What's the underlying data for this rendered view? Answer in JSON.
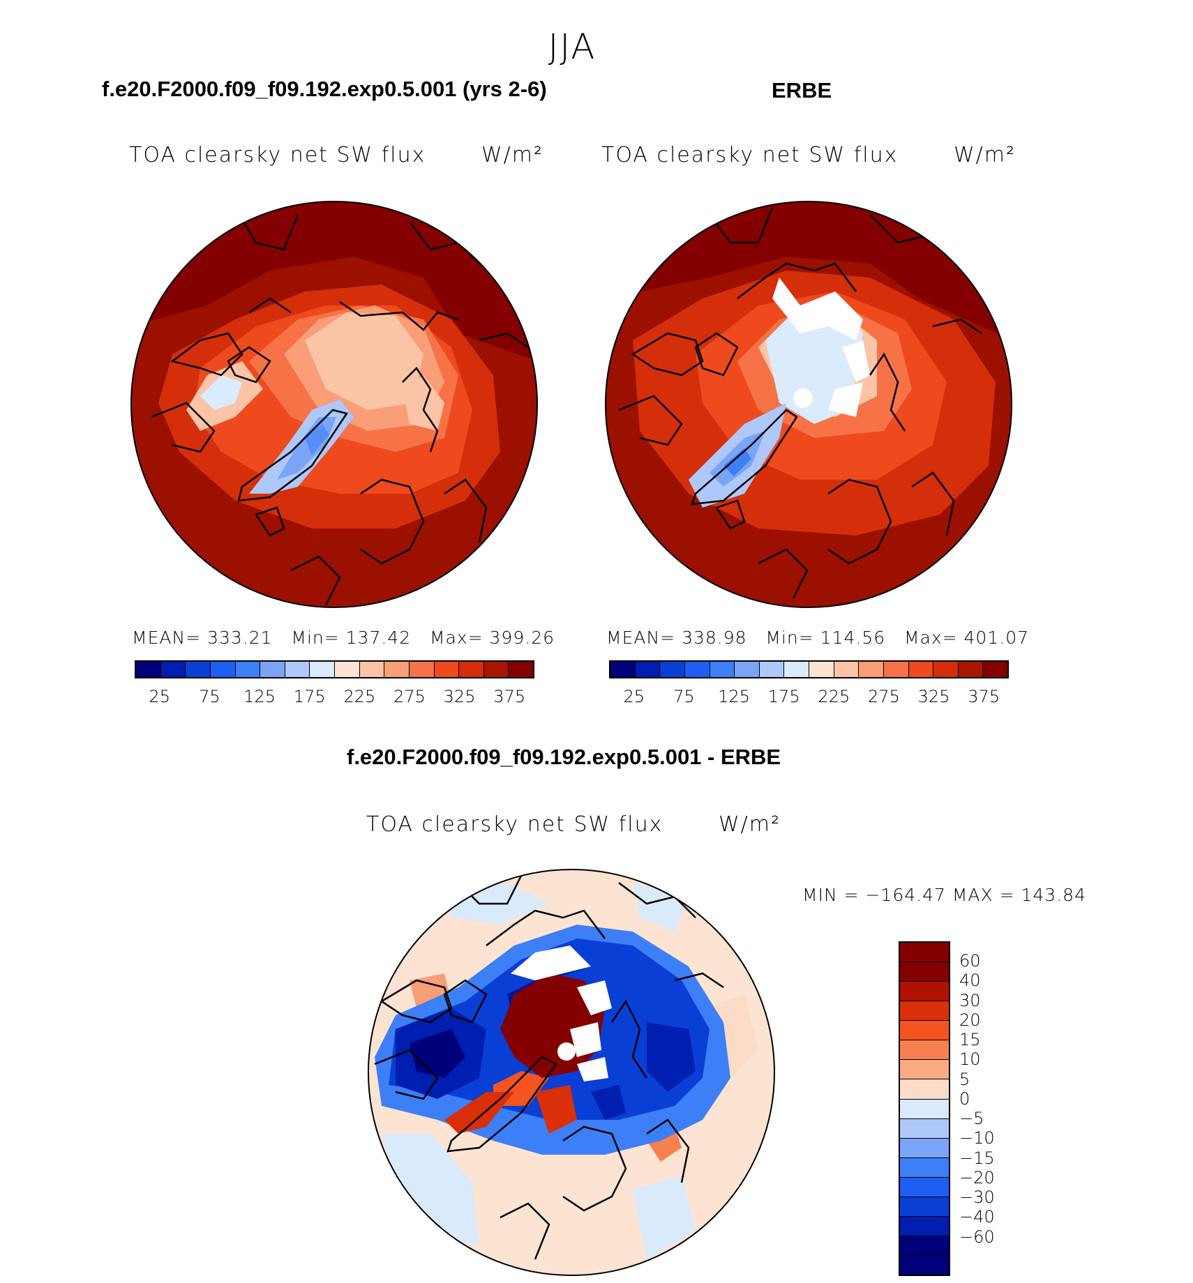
{
  "season": "JJA",
  "panels": [
    {
      "case": "f.e20.F2000.f09_f09.192.exp0.5.001 (yrs 2-6)",
      "variable": "TOA clearsky net SW flux",
      "units": "W/m²",
      "stats": "MEAN= 333.21   Min= 137.42   Max= 399.26"
    },
    {
      "case": "ERBE",
      "variable": "TOA clearsky net SW flux",
      "units": "W/m²",
      "stats": "MEAN= 338.98   Min= 114.56   Max= 401.07"
    }
  ],
  "diff": {
    "title": "f.e20.F2000.f09_f09.192.exp0.5.001 - ERBE",
    "variable": "TOA clearsky net SW flux",
    "units": "W/m²",
    "stats": "MIN = −164.47 MAX = 143.84"
  },
  "abs_colorbar": {
    "colors": [
      "#00007a",
      "#001eaf",
      "#0a3fd6",
      "#1e5ef2",
      "#3d7ff6",
      "#7aa5f7",
      "#adc8f9",
      "#d9ebfc",
      "#fde4d2",
      "#fbc4a6",
      "#f99e76",
      "#f77247",
      "#ee4a1e",
      "#d42e0b",
      "#a81600",
      "#840000"
    ],
    "labels": [
      "25",
      "75",
      "125",
      "175",
      "225",
      "275",
      "325",
      "375"
    ]
  },
  "diff_colorbar": {
    "colors": [
      "#840000",
      "#b01200",
      "#d9300a",
      "#f55420",
      "#f7804f",
      "#f9aa83",
      "#fcdcc6",
      "#d8eafc",
      "#adc8f9",
      "#7aa5f7",
      "#3d7ff6",
      "#1e5ef2",
      "#0a3fd6",
      "#001eaf",
      "#00007a"
    ],
    "labels": [
      "60",
      "40",
      "30",
      "20",
      "15",
      "10",
      "5",
      "0",
      "−5",
      "−10",
      "−15",
      "−20",
      "−30",
      "−40",
      "−60"
    ]
  }
}
